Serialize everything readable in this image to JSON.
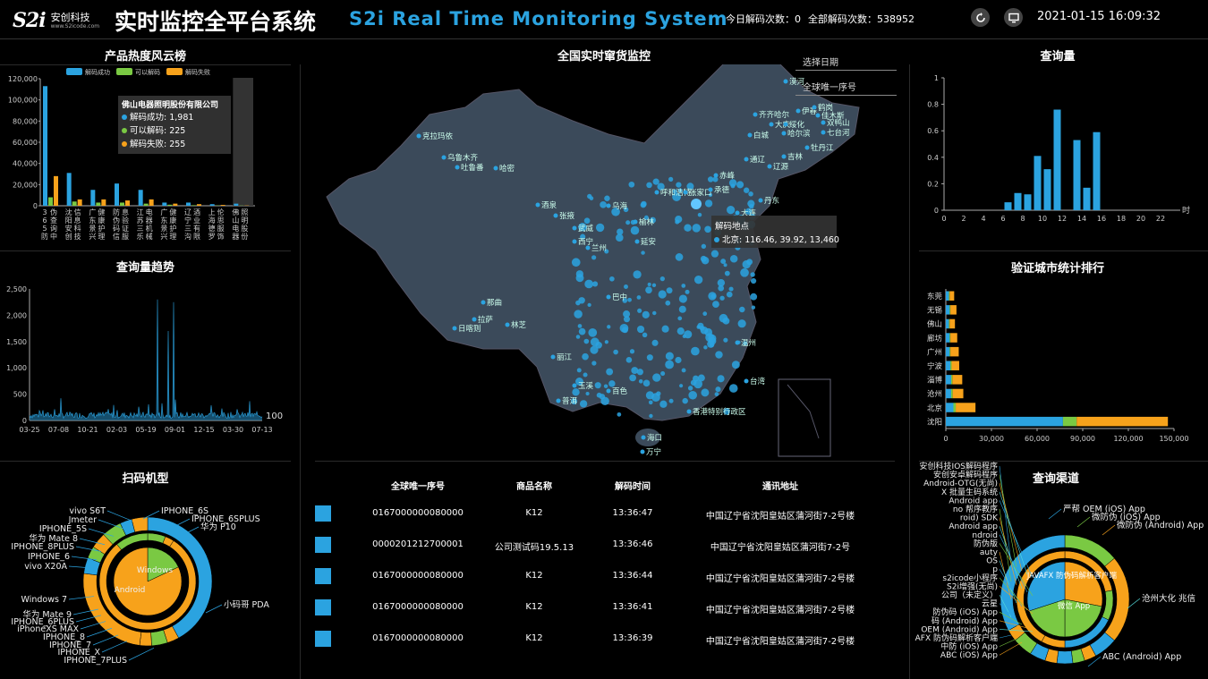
{
  "header": {
    "logo_mark": "S2i",
    "logo_cn": "安创科技",
    "logo_url": "www.S2icode.com",
    "title_cn": "实时监控全平台系统",
    "title_en": "S2i Real Time Monitoring System",
    "today_label": "今日解码次数：0",
    "total_label": "全部解码次数：538952",
    "datetime": "2021-01-15 16:09:32",
    "icons": [
      "refresh-icon",
      "monitor-icon"
    ]
  },
  "panels": {
    "hot": "产品热度风云榜",
    "trend": "查询量趋势",
    "scanner": "扫码机型",
    "map": "全国实时窜货监控",
    "query": "查询量",
    "city": "验证城市统计排行",
    "channel": "查询渠道"
  },
  "filters": {
    "date_placeholder": "选择日期",
    "serial_placeholder": "全球唯一序号"
  },
  "hot_chart": {
    "type": "bar",
    "legend": [
      "解码成功",
      "可以解码",
      "解码失败"
    ],
    "colors": [
      "#2ba3e0",
      "#7ac943",
      "#f7a21b"
    ],
    "categories": [
      "36 5防伪查询中",
      "沈阳安创信息科技",
      "广东景兴健康护理",
      "防伪码信息验证服",
      "江苏三乐电器机械",
      "广东景兴健康护理",
      "辽宁三沟酒业有限",
      "上海德罗伦思服饰",
      "佛山电器照明股份"
    ],
    "series": [
      {
        "name": "解码成功",
        "values": [
          113000,
          31000,
          15000,
          21000,
          15000,
          3000,
          3000,
          1500,
          1981
        ]
      },
      {
        "name": "可以解码",
        "values": [
          8000,
          4000,
          3000,
          3000,
          2000,
          1000,
          500,
          300,
          225
        ]
      },
      {
        "name": "解码失败",
        "values": [
          28000,
          6000,
          6000,
          5000,
          6000,
          2000,
          1500,
          800,
          255
        ]
      }
    ],
    "yticks": [
      "0",
      "20,000",
      "40,000",
      "60,000",
      "80,000",
      "100,000",
      "120,000"
    ],
    "ymax": 120000,
    "tooltip": {
      "title": "佛山电器照明股份有限公司",
      "lines": [
        "解码成功: 1,981",
        "可以解码: 225",
        "解码失败: 255"
      ]
    }
  },
  "trend_chart": {
    "type": "area",
    "xticks": [
      "03-25",
      "07-08",
      "10-21",
      "02-03",
      "05-19",
      "09-01",
      "12-15",
      "03-30",
      "07-13"
    ],
    "yticks": [
      "0",
      "500",
      "1,000",
      "1,500",
      "2,000",
      "2,500"
    ],
    "ymax": 2500,
    "marker_label": "100"
  },
  "query_chart": {
    "type": "bar",
    "x": [
      6,
      7,
      8,
      9,
      10,
      11,
      12,
      13,
      14,
      15
    ],
    "values": [
      0.06,
      0.13,
      0.12,
      0.41,
      0.31,
      0.76,
      0.0,
      0.53,
      0.17,
      0.59
    ],
    "xticks": [
      "0",
      "2",
      "4",
      "6",
      "8",
      "10",
      "12",
      "14",
      "16",
      "18",
      "20",
      "22"
    ],
    "yticks": [
      "0",
      "0.2",
      "0.4",
      "0.6",
      "0.8",
      "1"
    ],
    "xunit": "时",
    "ymax": 1
  },
  "city_chart": {
    "type": "bar",
    "categories": [
      "东莞",
      "无锡",
      "佛山",
      "廊坊",
      "广州",
      "宁波",
      "淄博",
      "沧州",
      "北京",
      "沈阳"
    ],
    "series": [
      {
        "name": "解码成功",
        "values": [
          2000,
          2500,
          2000,
          2500,
          2500,
          3000,
          3500,
          3500,
          5000,
          77000
        ]
      },
      {
        "name": "可以解码",
        "values": [
          500,
          500,
          500,
          500,
          500,
          800,
          800,
          1000,
          1500,
          9000
        ]
      },
      {
        "name": "解码失败",
        "values": [
          3000,
          4000,
          3500,
          4500,
          5500,
          5000,
          6500,
          7000,
          13000,
          60000
        ]
      }
    ],
    "xticks": [
      "0",
      "30,000",
      "60,000",
      "90,000",
      "120,000",
      "150,000"
    ],
    "xmax": 150000
  },
  "map": {
    "tooltip_title": "解码地点",
    "tooltip_value": "北京: 116.46, 39.92, 13,460",
    "cities": [
      {
        "name": "漠河",
        "x": 884,
        "y": 91
      },
      {
        "name": "齐齐哈尔",
        "x": 850,
        "y": 128
      },
      {
        "name": "伊春",
        "x": 898,
        "y": 124
      },
      {
        "name": "大庆",
        "x": 868,
        "y": 139
      },
      {
        "name": "绥化",
        "x": 884,
        "y": 139
      },
      {
        "name": "佳木斯",
        "x": 920,
        "y": 129
      },
      {
        "name": "鹤岗",
        "x": 916,
        "y": 120
      },
      {
        "name": "双鸭山",
        "x": 926,
        "y": 137
      },
      {
        "name": "七台河",
        "x": 926,
        "y": 148
      },
      {
        "name": "哈尔滨",
        "x": 882,
        "y": 149
      },
      {
        "name": "白城",
        "x": 844,
        "y": 151
      },
      {
        "name": "牡丹江",
        "x": 908,
        "y": 165
      },
      {
        "name": "克拉玛依",
        "x": 474,
        "y": 152
      },
      {
        "name": "乌鲁木齐",
        "x": 502,
        "y": 176
      },
      {
        "name": "吐鲁番",
        "x": 517,
        "y": 187
      },
      {
        "name": "哈密",
        "x": 560,
        "y": 188
      },
      {
        "name": "通辽",
        "x": 840,
        "y": 178
      },
      {
        "name": "吉林",
        "x": 882,
        "y": 175
      },
      {
        "name": "辽源",
        "x": 866,
        "y": 186
      },
      {
        "name": "赤峰",
        "x": 806,
        "y": 196
      },
      {
        "name": "酒泉",
        "x": 607,
        "y": 229
      },
      {
        "name": "张掖",
        "x": 627,
        "y": 241
      },
      {
        "name": "呼和浩特",
        "x": 740,
        "y": 215
      },
      {
        "name": "张家口",
        "x": 772,
        "y": 215
      },
      {
        "name": "承德",
        "x": 800,
        "y": 212
      },
      {
        "name": "丹东",
        "x": 856,
        "y": 224
      },
      {
        "name": "大连",
        "x": 830,
        "y": 238
      },
      {
        "name": "乌海",
        "x": 686,
        "y": 230
      },
      {
        "name": "武威",
        "x": 648,
        "y": 255
      },
      {
        "name": "西宁",
        "x": 648,
        "y": 270
      },
      {
        "name": "兰州",
        "x": 663,
        "y": 277
      },
      {
        "name": "榆林",
        "x": 716,
        "y": 248
      },
      {
        "name": "延安",
        "x": 718,
        "y": 270
      },
      {
        "name": "那曲",
        "x": 546,
        "y": 338
      },
      {
        "name": "拉萨",
        "x": 536,
        "y": 357
      },
      {
        "name": "林芝",
        "x": 573,
        "y": 363
      },
      {
        "name": "日喀则",
        "x": 514,
        "y": 367
      },
      {
        "name": "巴中",
        "x": 686,
        "y": 332
      },
      {
        "name": "丽江",
        "x": 624,
        "y": 399
      },
      {
        "name": "普洱",
        "x": 630,
        "y": 448
      },
      {
        "name": "百色",
        "x": 686,
        "y": 437
      },
      {
        "name": "玉溪",
        "x": 648,
        "y": 431
      },
      {
        "name": "海口",
        "x": 725,
        "y": 489
      },
      {
        "name": "万宁",
        "x": 724,
        "y": 505
      },
      {
        "name": "温州",
        "x": 830,
        "y": 383
      },
      {
        "name": "台湾",
        "x": 840,
        "y": 426
      },
      {
        "name": "香港特别行政区",
        "x": 776,
        "y": 460
      }
    ],
    "beijing": {
      "x": 778,
      "y": 228
    }
  },
  "table": {
    "headers": [
      "全球唯一序号",
      "商品名称",
      "解码时间",
      "通讯地址"
    ],
    "rows": [
      [
        "0167000000080000",
        "K12",
        "13:36:47",
        "中国辽宁省沈阳皇姑区蒲河街7-2号楼"
      ],
      [
        "0000201212700001",
        "公司测试码19.5.13",
        "13:36:46",
        "中国辽宁省沈阳皇姑区蒲河街7-2号"
      ],
      [
        "0167000000080000",
        "K12",
        "13:36:44",
        "中国辽宁省沈阳皇姑区蒲河街7-2号楼"
      ],
      [
        "0167000000080000",
        "K12",
        "13:36:41",
        "中国辽宁省沈阳皇姑区蒲河街7-2号楼"
      ],
      [
        "0167000000080000",
        "K12",
        "13:36:39",
        "中国辽宁省沈阳皇姑区蒲河街7-2号楼"
      ]
    ]
  },
  "scanner": {
    "left_labels": [
      "vivo S6T",
      "Jmeter",
      "IPHONE_5S",
      "华为 Mate 8",
      "IPHONE_8PLUS",
      "IPHONE_6",
      "vivo X20A",
      "Windows 7",
      "华为 Mate 9",
      "IPHONE_6PLUS",
      "iPhoneXS MAX",
      "IPHONE_8",
      "IPHONE_7",
      "IPHONE_X",
      "IPHONE_7PLUS"
    ],
    "right_labels": [
      "IPHONE_6S",
      "IPHONE_6SPLUS",
      "华为 P10",
      "小码哥 PDA"
    ],
    "inner_labels": [
      "Windows",
      "Android"
    ]
  },
  "channel": {
    "left_labels": [
      "安创科技IOS解码程序",
      "安创安卓解码程序",
      "Android-OTG(无尚)",
      "X 批量生码系统",
      "Android app",
      "no 帮序教序",
      "roid) SDK",
      "Android app",
      "ndroid",
      "防伪版",
      "auty",
      "OS",
      "p",
      "s2icode小程序",
      "S2i增强(无尚)",
      "公司（未定义）",
      "云星",
      "防伪码 (iOS) App",
      "码 (Android) App",
      "OEM (Android) App",
      "AFX 防伪码解析客户端",
      "中防 (iOS) App",
      "ABC (iOS) App"
    ],
    "right_labels": [
      "严帮 OEM (iOS) App",
      "微防伪 (iOS) App",
      "微防伪 (Android) App",
      "沧州大化 兆信",
      "ABC (Android) App"
    ],
    "inner_labels": [
      "JAVAFX 防伪码解析客户端",
      "微信 App"
    ]
  }
}
